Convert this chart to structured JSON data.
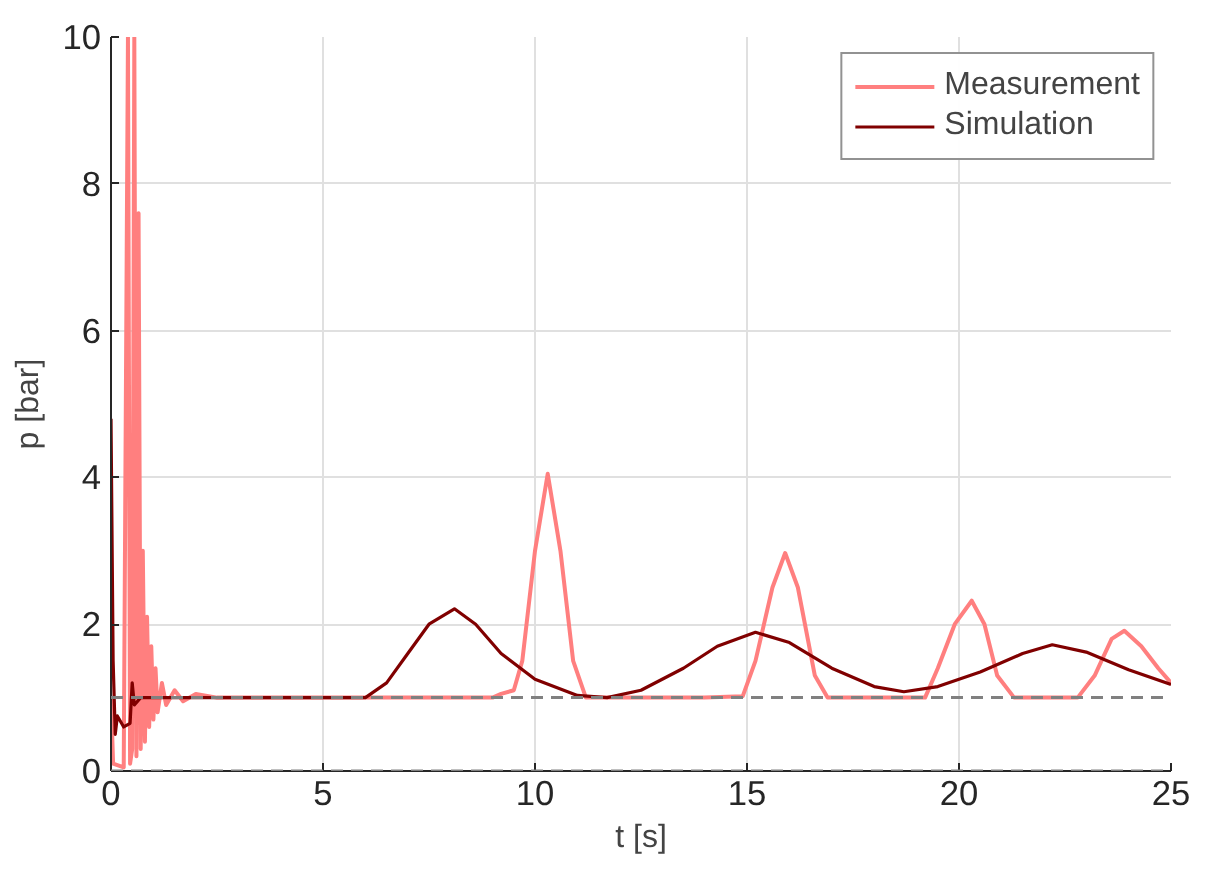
{
  "chart_data": {
    "type": "line",
    "xlabel": "t [s]",
    "ylabel": "p [bar]",
    "xlim": [
      0,
      25
    ],
    "ylim": [
      0,
      10
    ],
    "xticks": [
      0,
      5,
      10,
      15,
      20,
      25
    ],
    "yticks": [
      0,
      2,
      4,
      6,
      8,
      10
    ],
    "grid": true,
    "legend": "top right",
    "line_style": "solid",
    "marker": "none",
    "series": [
      {
        "name": "Measurement",
        "color": "#ff7f7f",
        "x": [
          0,
          0.05,
          0.3,
          0.4,
          0.45,
          0.5,
          0.55,
          0.6,
          0.65,
          0.7,
          0.75,
          0.8,
          0.85,
          0.9,
          0.95,
          1.0,
          1.05,
          1.1,
          1.2,
          1.3,
          1.5,
          1.7,
          2,
          2.5,
          5,
          9,
          9.2,
          9.5,
          9.7,
          10.0,
          10.3,
          10.6,
          10.9,
          11.2,
          12,
          14,
          14.9,
          15.2,
          15.6,
          15.9,
          16.2,
          16.6,
          16.9,
          19.2,
          19.5,
          19.9,
          20.3,
          20.6,
          20.9,
          21.3,
          22.8,
          23.2,
          23.6,
          23.9,
          24.3,
          24.7,
          25
        ],
        "values": [
          1.0,
          0.1,
          0.05,
          10,
          0.1,
          0.3,
          10,
          0.2,
          7.6,
          0.3,
          3.0,
          0.4,
          2.1,
          0.6,
          1.7,
          0.7,
          1.4,
          0.8,
          1.2,
          0.9,
          1.1,
          0.95,
          1.05,
          1.0,
          1.0,
          1.0,
          1.05,
          1.1,
          1.5,
          3.0,
          4.05,
          3.0,
          1.5,
          1.0,
          1.0,
          1.0,
          1.02,
          1.5,
          2.5,
          2.97,
          2.5,
          1.3,
          1.0,
          1.0,
          1.4,
          2.0,
          2.32,
          2.0,
          1.3,
          1.0,
          1.0,
          1.3,
          1.8,
          1.91,
          1.7,
          1.4,
          1.2
        ]
      },
      {
        "name": "Simulation",
        "color": "#800000",
        "x": [
          0,
          0.05,
          0.1,
          0.15,
          0.3,
          0.45,
          0.5,
          0.55,
          0.7,
          6,
          6.5,
          7,
          7.5,
          8.1,
          8.6,
          9.2,
          10,
          11,
          11.7,
          12.5,
          13.5,
          14.3,
          15.2,
          16,
          17,
          18,
          18.7,
          19.5,
          20.5,
          21.5,
          22.2,
          23,
          24,
          25
        ],
        "values": [
          4.8,
          1.5,
          0.5,
          0.75,
          0.6,
          0.65,
          1.2,
          0.9,
          1.0,
          1.0,
          1.2,
          1.6,
          2.0,
          2.21,
          2.0,
          1.6,
          1.25,
          1.03,
          1.0,
          1.1,
          1.4,
          1.7,
          1.89,
          1.75,
          1.4,
          1.15,
          1.08,
          1.15,
          1.35,
          1.6,
          1.72,
          1.62,
          1.38,
          1.18
        ]
      }
    ],
    "ref_lines": [
      {
        "axis": "y",
        "value": 1,
        "color": "#808080",
        "line_style": "dashed"
      },
      {
        "axis": "y",
        "value": 0,
        "color": "#808080",
        "line_style": "dashed"
      }
    ]
  }
}
